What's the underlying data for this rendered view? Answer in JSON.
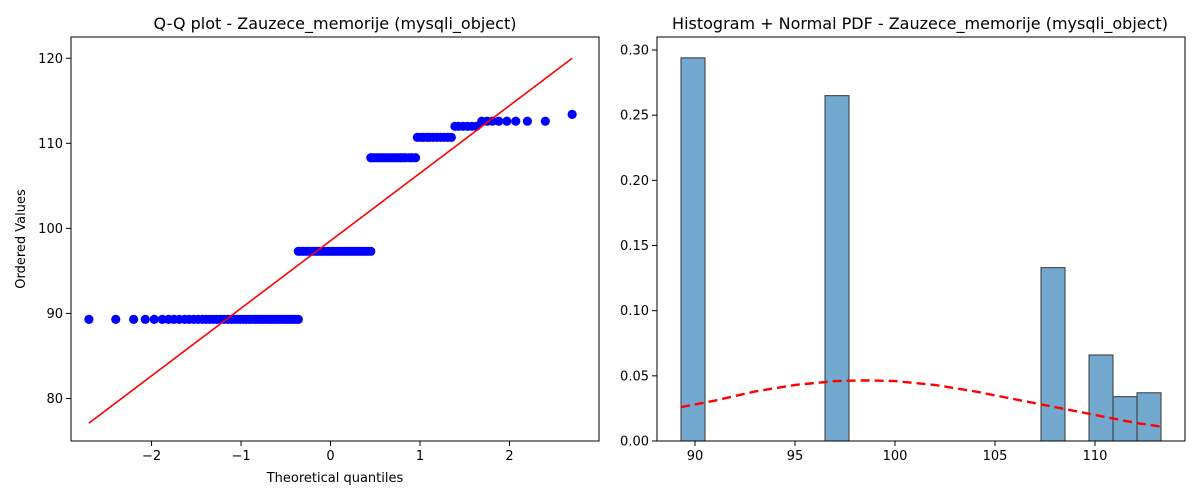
{
  "chart_data": [
    {
      "type": "scatter",
      "title": "Q-Q plot - Zauzece_memorije (mysqli_object)",
      "xlabel": "Theoretical quantiles",
      "ylabel": "Ordered Values",
      "xlim": [
        -2.9,
        3.0
      ],
      "ylim": [
        75,
        122.5
      ],
      "xticks": [
        -2,
        -1,
        0,
        1,
        2
      ],
      "yticks": [
        80,
        90,
        100,
        110,
        120
      ],
      "grid": false,
      "colors": {
        "points": "#0000ff",
        "fit_line": "#ff0000"
      },
      "series": [
        {
          "kind": "points",
          "groups": [
            {
              "y": 89.3,
              "x": [
                -2.7,
                -2.4,
                -2.2,
                -2.07,
                -1.97,
                -1.88,
                -1.81,
                -1.75,
                -1.69,
                -1.63,
                -1.58,
                -1.53,
                -1.48,
                -1.43,
                -1.39,
                -1.35,
                -1.31,
                -1.27,
                -1.23,
                -1.19,
                -1.15,
                -1.11,
                -1.08,
                -1.04,
                -1.01,
                -0.97,
                -0.94,
                -0.91,
                -0.88,
                -0.84,
                -0.81,
                -0.78,
                -0.75,
                -0.72,
                -0.69,
                -0.66,
                -0.63,
                -0.6,
                -0.57,
                -0.54,
                -0.51,
                -0.48,
                -0.45,
                -0.42,
                -0.39,
                -0.36
              ]
            },
            {
              "y": 97.3,
              "x": [
                -0.36,
                -0.33,
                -0.3,
                -0.27,
                -0.24,
                -0.21,
                -0.18,
                -0.15,
                -0.12,
                -0.09,
                -0.06,
                -0.03,
                0.0,
                0.03,
                0.06,
                0.09,
                0.12,
                0.15,
                0.18,
                0.21,
                0.24,
                0.27,
                0.3,
                0.33,
                0.36,
                0.39,
                0.42,
                0.45
              ]
            },
            {
              "y": 108.3,
              "x": [
                0.45,
                0.48,
                0.51,
                0.54,
                0.57,
                0.6,
                0.63,
                0.66,
                0.69,
                0.72,
                0.75,
                0.78,
                0.81,
                0.84,
                0.88,
                0.91,
                0.95
              ]
            },
            {
              "y": 110.7,
              "x": [
                0.97,
                1.01,
                1.04,
                1.08,
                1.11,
                1.15,
                1.19,
                1.23,
                1.27,
                1.31,
                1.35
              ]
            },
            {
              "y": 112.0,
              "x": [
                1.39,
                1.43,
                1.48,
                1.53,
                1.58,
                1.63
              ]
            },
            {
              "y": 112.6,
              "x": [
                1.69,
                1.75,
                1.81,
                1.88,
                1.97,
                2.07,
                2.2,
                2.4
              ]
            },
            {
              "y": 113.4,
              "x": [
                2.7
              ]
            }
          ]
        },
        {
          "kind": "fit-line",
          "x": [
            -2.7,
            2.7
          ],
          "y": [
            77.1,
            120.0
          ]
        }
      ]
    },
    {
      "type": "bar",
      "title": "Histogram + Normal PDF - Zauzece_memorije (mysqli_object)",
      "xlabel": "",
      "ylabel": "",
      "xlim": [
        88.1,
        114.5
      ],
      "ylim": [
        0,
        0.31
      ],
      "xticks": [
        90,
        95,
        100,
        105,
        110
      ],
      "yticks": [
        0.0,
        0.05,
        0.1,
        0.15,
        0.2,
        0.25,
        0.3
      ],
      "ytick_labels": [
        "0.00",
        "0.05",
        "0.10",
        "0.15",
        "0.20",
        "0.25",
        "0.30"
      ],
      "grid": false,
      "colors": {
        "bars": "#74a9cf",
        "bar_edge": "#333333",
        "pdf": "#ff0000"
      },
      "bins": [
        {
          "x0": 89.3,
          "x1": 90.5,
          "value": 0.294
        },
        {
          "x0": 96.5,
          "x1": 97.7,
          "value": 0.265
        },
        {
          "x0": 107.3,
          "x1": 108.5,
          "value": 0.133
        },
        {
          "x0": 109.7,
          "x1": 110.9,
          "value": 0.066
        },
        {
          "x0": 110.9,
          "x1": 112.1,
          "value": 0.034
        },
        {
          "x0": 112.1,
          "x1": 113.3,
          "value": 0.037
        }
      ],
      "pdf_curve": {
        "style": "dashed",
        "x": [
          89.3,
          91,
          93,
          95,
          97,
          98.5,
          100,
          102,
          104,
          106,
          108,
          110,
          112,
          113.3
        ],
        "y": [
          0.026,
          0.031,
          0.038,
          0.043,
          0.046,
          0.0465,
          0.046,
          0.043,
          0.038,
          0.032,
          0.026,
          0.02,
          0.014,
          0.011
        ]
      }
    }
  ]
}
